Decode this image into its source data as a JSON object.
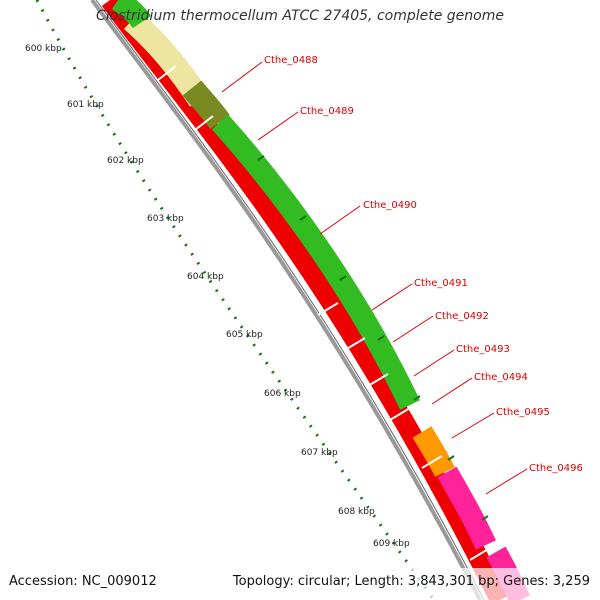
{
  "title": "Clostridium thermocellum ATCC 27405, complete genome",
  "footer": {
    "accession": "Accession: NC_009012",
    "stats": "Topology: circular; Length: 3,843,301 bp; Genes: 3,259"
  },
  "colors": {
    "gene_red": "#ee0000",
    "gene_green": "#33bb22",
    "gene_olive": "#7a8a22",
    "gene_yellow": "#eee6a0",
    "gene_orange": "#ff9900",
    "gene_pink": "#ff2299",
    "label": "#dd0000",
    "tick": "#117711",
    "backbone": "#999999"
  },
  "ticks": [
    "600 kbp",
    "601 kbp",
    "602 kbp",
    "603 kbp",
    "604 kbp",
    "605 kbp",
    "606 kbp",
    "607 kbp",
    "608 kbp",
    "609 kbp"
  ],
  "gene_labels": [
    "Cthe_0488",
    "Cthe_0489",
    "Cthe_0490",
    "Cthe_0491",
    "Cthe_0492",
    "Cthe_0493",
    "Cthe_0494",
    "Cthe_0495",
    "Cthe_0496"
  ]
}
